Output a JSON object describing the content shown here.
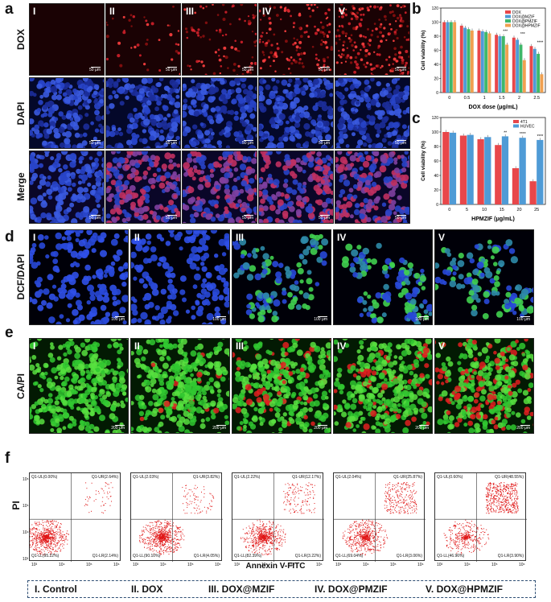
{
  "panel_letters": {
    "a": "a",
    "b": "b",
    "c": "c",
    "d": "d",
    "e": "e",
    "f": "f"
  },
  "panel_a": {
    "row_labels": [
      "DOX",
      "DAPI",
      "Merge"
    ],
    "columns": [
      "I",
      "II",
      "III",
      "IV",
      "V"
    ],
    "scale": "50 μm",
    "colors": {
      "dox": "#d0202a",
      "dapi": "#2844c8",
      "merge": "#8040a0"
    }
  },
  "panel_d": {
    "row_label": "DCF/DAPI",
    "columns": [
      "I",
      "II",
      "III",
      "IV",
      "V"
    ],
    "scale": "100 μm",
    "colors": {
      "dapi": "#2848d8",
      "dcf": "#40d050"
    }
  },
  "panel_e": {
    "row_label": "CA/PI",
    "columns": [
      "I",
      "II",
      "III",
      "IV",
      "V"
    ],
    "scale": "200 μm",
    "colors": {
      "ca": "#30c830",
      "pi": "#e02020"
    }
  },
  "chart_data": [
    {
      "type": "bar",
      "panel": "b",
      "ylabel": "Cell viability (%)",
      "xlabel": "DOX dose (μg/mL)",
      "ylim": [
        0,
        120
      ],
      "yticks": [
        0,
        20,
        40,
        60,
        80,
        100,
        120
      ],
      "categories": [
        "0",
        "0.5",
        "1",
        "1.5",
        "2",
        "2.5"
      ],
      "series": [
        {
          "name": "DOX",
          "color": "#e8474a",
          "values": [
            100,
            95,
            88,
            82,
            78,
            66
          ]
        },
        {
          "name": "DOX@MZIF",
          "color": "#4f9bd6",
          "values": [
            100,
            92,
            87,
            80,
            75,
            62
          ]
        },
        {
          "name": "DOX@PMZIF",
          "color": "#3fb86a",
          "values": [
            100,
            90,
            86,
            80,
            68,
            55
          ]
        },
        {
          "name": "DOX@HPMZIF",
          "color": "#f0a050",
          "values": [
            100,
            88,
            84,
            68,
            46,
            26
          ]
        }
      ],
      "annotations": [
        {
          "category": "1.5",
          "text": "***"
        },
        {
          "category": "2",
          "text": "***"
        },
        {
          "category": "2.5",
          "text": "****"
        }
      ],
      "legend": "top-right"
    },
    {
      "type": "bar",
      "panel": "c",
      "ylabel": "Cell viability (%)",
      "xlabel": "HPMZIF (μg/mL)",
      "ylim": [
        0,
        120
      ],
      "yticks": [
        0,
        20,
        40,
        60,
        80,
        100,
        120
      ],
      "categories": [
        "0",
        "5",
        "10",
        "15",
        "20",
        "25"
      ],
      "series": [
        {
          "name": "4T1",
          "color": "#e8474a",
          "values": [
            100,
            95,
            90,
            82,
            50,
            32
          ]
        },
        {
          "name": "HUVEC",
          "color": "#4f9bd6",
          "values": [
            99,
            96,
            93,
            94,
            92,
            89
          ]
        }
      ],
      "annotations": [
        {
          "category": "15",
          "text": "**"
        },
        {
          "category": "20",
          "text": "****"
        },
        {
          "category": "25",
          "text": "****"
        }
      ],
      "legend": "top-right"
    },
    {
      "type": "scatter",
      "panel": "f",
      "ylabel": "PI",
      "xlabel": "Annexin V-FITC",
      "x_ticks": [
        "10³",
        "10⁴",
        "10⁵",
        "10⁶"
      ],
      "y_ticks": [
        "10³",
        "10⁴",
        "10⁵",
        "10⁶"
      ],
      "plots": [
        {
          "UL": "Q1-UL(0.00%)",
          "UR": "Q1-UR(2.64%)",
          "LL": "Q1-LL(95.22%)",
          "LR": "Q1-LR(2.14%)",
          "apoptotic": 0.05
        },
        {
          "UL": "Q1-UL(2.03%)",
          "UR": "Q1-UR(3.82%)",
          "LL": "Q1-LL(90.10%)",
          "LR": "Q1-LR(4.05%)",
          "apoptotic": 0.08
        },
        {
          "UL": "Q1-UL(2.22%)",
          "UR": "Q1-UR(12.17%)",
          "LL": "Q1-LL(82.39%)",
          "LR": "Q1-LR(3.22%)",
          "apoptotic": 0.15
        },
        {
          "UL": "Q1-UL(2.04%)",
          "UR": "Q1-UR(25.87%)",
          "LL": "Q1-LL(69.04%)",
          "LR": "Q1-LR(3.06%)",
          "apoptotic": 0.29
        },
        {
          "UL": "Q1-UL(0.60%)",
          "UR": "Q1-UR(48.55%)",
          "LL": "Q1-LL(46.96%)",
          "LR": "Q1-LR(3.90%)",
          "apoptotic": 0.52
        }
      ]
    }
  ],
  "legend_items": [
    "I. Control",
    "II. DOX",
    "III. DOX@MZIF",
    "IV. DOX@PMZIF",
    "V. DOX@HPMZIF"
  ]
}
